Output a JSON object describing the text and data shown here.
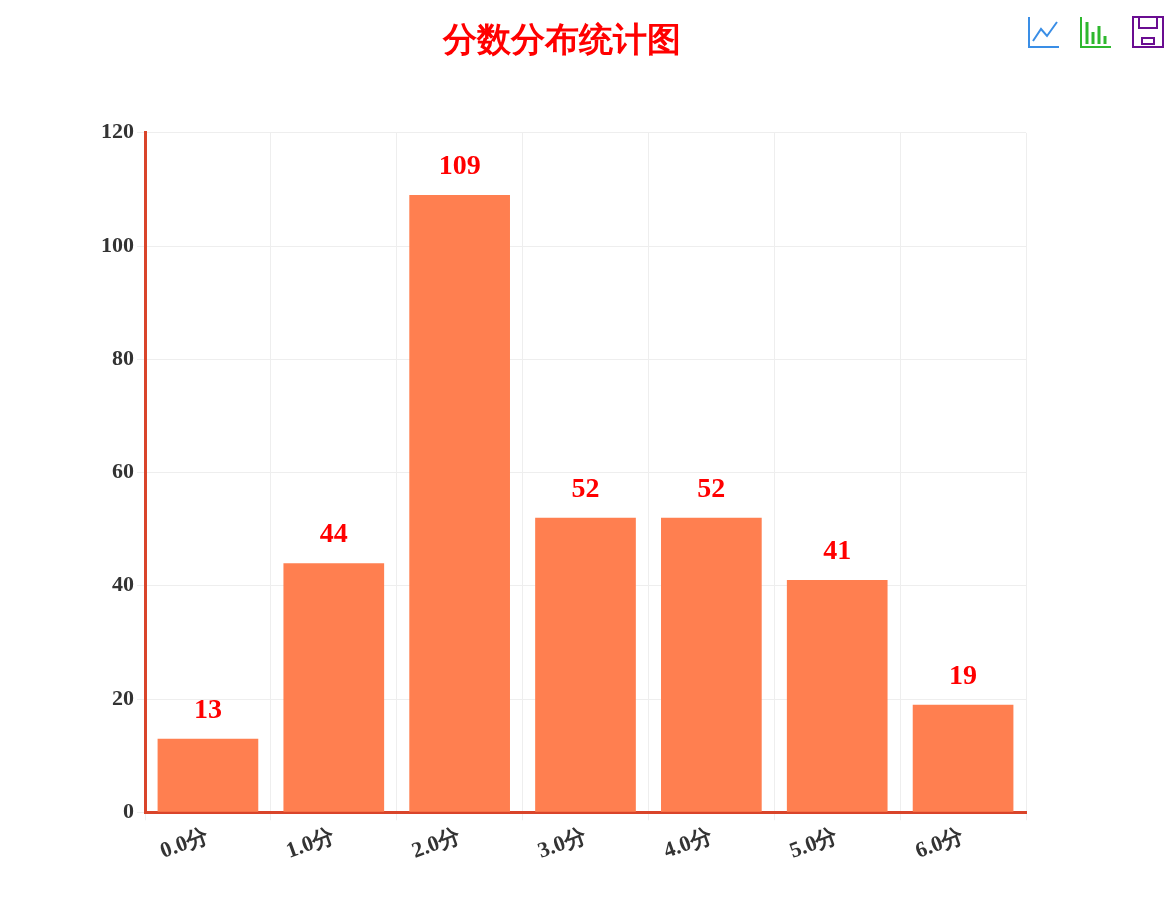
{
  "chart_data": {
    "type": "bar",
    "title": "分数分布统计图",
    "categories": [
      "0.0分",
      "1.0分",
      "2.0分",
      "3.0分",
      "4.0分",
      "5.0分",
      "6.0分"
    ],
    "values": [
      13,
      44,
      109,
      52,
      52,
      41,
      19
    ],
    "color": "#ff7f50",
    "ylim": [
      0,
      120
    ],
    "yticks": [
      0,
      20,
      40,
      60,
      80,
      100,
      120
    ],
    "grid": true,
    "legend": false,
    "data_labels": true
  }
}
